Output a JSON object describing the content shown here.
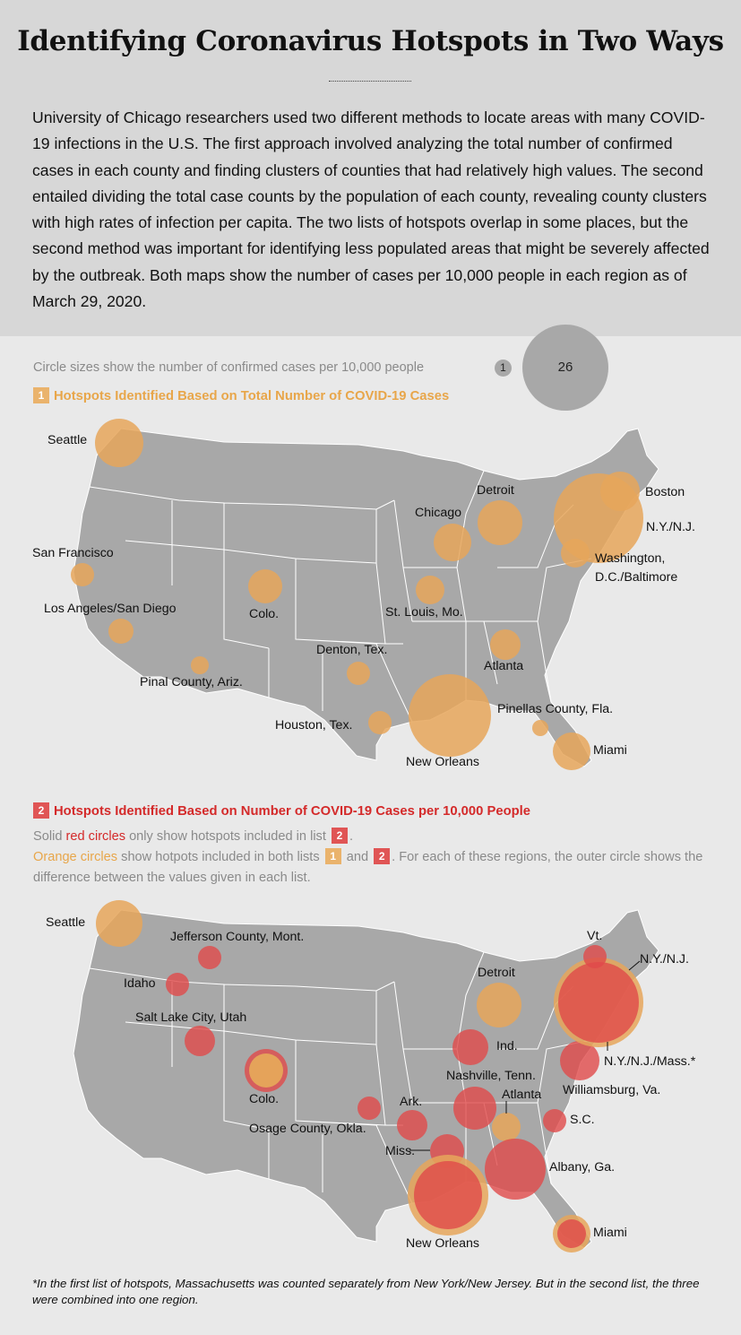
{
  "title": "Identifying Coronavirus Hotspots in Two Ways",
  "intro": "University of Chicago researchers used two different methods to locate areas with many COVID-19 infections in the U.S. The first approach involved analyzing the total number of confirmed cases in each county and finding clusters of counties that had relatively high values. The second entailed dividing the total case counts by the population of each county, revealing county clusters with high rates of infection per capita. The two lists of hotspots overlap in some places, but the second method was important for identifying less populated areas that might be severely affected by the outbreak. Both maps show the number of cases per 10,000 people in each region as of March 29, 2020.",
  "scale": {
    "note": "Circle sizes show the number of confirmed cases per 10,000 people",
    "min_label": "1",
    "max_label": "26"
  },
  "section1": {
    "badge": "1",
    "title": "Hotspots Identified Based on Total Number of COVID-19 Cases"
  },
  "section2": {
    "badge": "2",
    "title": "Hotspots Identified Based on Number of COVID-19 Cases per 10,000 People",
    "legend_line1_a": "Solid ",
    "legend_line1_red": "red circles",
    "legend_line1_b": " only show hotspots included in list ",
    "legend_line1_badge": "2",
    "legend_line1_end": ".",
    "legend_line2_orange": "Orange circles",
    "legend_line2_a": " show hotpots included in both lists ",
    "legend_line2_badge1": "1",
    "legend_line2_and": " and ",
    "legend_line2_badge2": "2",
    "legend_line2_b": ". For each of these regions, the outer circle shows the difference between the values given in each list."
  },
  "map1_labels": {
    "seattle": "Seattle",
    "san_francisco": "San Francisco",
    "los_angeles": "Los Angeles/San Diego",
    "pinal": "Pinal County, Ariz.",
    "colo": "Colo.",
    "denton": "Denton, Tex.",
    "houston": "Houston, Tex.",
    "new_orleans": "New Orleans",
    "st_louis": "St. Louis, Mo.",
    "chicago": "Chicago",
    "detroit": "Detroit",
    "atlanta": "Atlanta",
    "pinellas": "Pinellas County, Fla.",
    "miami": "Miami",
    "washington": "Washington,",
    "washington2": "D.C./Baltimore",
    "nynj": "N.Y./N.J.",
    "boston": "Boston"
  },
  "map2_labels": {
    "seattle": "Seattle",
    "jefferson": "Jefferson County, Mont.",
    "idaho": "Idaho",
    "slc": "Salt Lake City, Utah",
    "colo": "Colo.",
    "osage": "Osage County, Okla.",
    "ark": "Ark.",
    "miss": "Miss.",
    "new_orleans": "New Orleans",
    "detroit": "Detroit",
    "ind": "Ind.",
    "nashville": "Nashville, Tenn.",
    "atlanta": "Atlanta",
    "albany": "Albany, Ga.",
    "sc": "S.C.",
    "williamsburg": "Williamsburg, Va.",
    "vt": "Vt.",
    "nynj": "N.Y./N.J.",
    "nynjmass": "N.Y./N.J./Mass.*",
    "miami": "Miami"
  },
  "footnote": "*In the first list of hotspots, Massachusetts was counted separately from New York/New Jersey. But in the second list, the three were combined into one region.",
  "colors": {
    "orange": "#e8a64a",
    "orange_fill": "#e6a65a",
    "red": "#d42a2a",
    "red_fill": "#e04a4a",
    "map_gray": "#a8a8a8"
  }
}
